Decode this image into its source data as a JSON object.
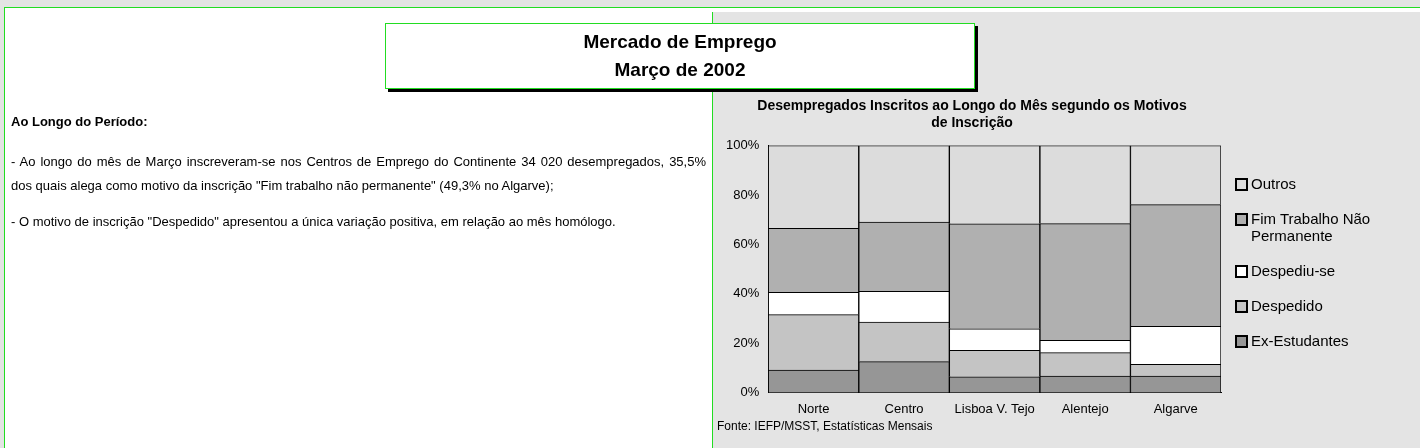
{
  "chart_data": {
    "type": "bar",
    "title": "Desempregados Inscritos ao Longo do Mês segundo os Motivos de Inscrição",
    "stacked": true,
    "legend": "right",
    "grid": false,
    "categories": [
      "Norte",
      "Centro",
      "Lisboa V. Tejo",
      "Alentejo",
      "Algarve"
    ],
    "series": [
      {
        "name": "Ex-Estudantes",
        "color": "#969696",
        "values": [
          9,
          12.5,
          6.3,
          6.6,
          6.6
        ]
      },
      {
        "name": "Despedido",
        "color": "#c4c4c4",
        "values": [
          22.5,
          16,
          10.7,
          9.5,
          4.8
        ]
      },
      {
        "name": "Despediu-se",
        "color": "#ffffff",
        "values": [
          9,
          12.5,
          8.8,
          5,
          15.4
        ]
      },
      {
        "name": "Fim Trabalho Não Permanente",
        "color": "#b0b0b0",
        "values": [
          26,
          28,
          42.5,
          47.3,
          49.3
        ]
      },
      {
        "name": "Outros",
        "color": "#dcdcdc",
        "values": [
          33.5,
          31,
          31.7,
          31.6,
          23.9
        ]
      }
    ],
    "ylim": [
      0,
      100
    ],
    "yticks": [
      {
        "value": 0,
        "label": "0%"
      },
      {
        "value": 20,
        "label": "20%"
      },
      {
        "value": 40,
        "label": "40%"
      },
      {
        "value": 60,
        "label": "60%"
      },
      {
        "value": 80,
        "label": "80%"
      },
      {
        "value": 100,
        "label": "100%"
      }
    ],
    "annotations": [
      "Mercado de Emprego",
      "Março de 2002",
      "Ao Longo do Período:",
      "-   Ao longo do mês de Março inscreveram-se nos Centros de Emprego do Continente 34 020 desempregados, 35,5% dos quais alega como motivo da inscrição  \"Fim trabalho não permanente\" (49,3% no Algarve);",
      "-  O motivo de inscrição  \"Despedido\" apresentou a única variação positiva, em relação ao mês homólogo.",
      "Fonte: IEFP/MSST, Estatísticas Mensais"
    ]
  }
}
